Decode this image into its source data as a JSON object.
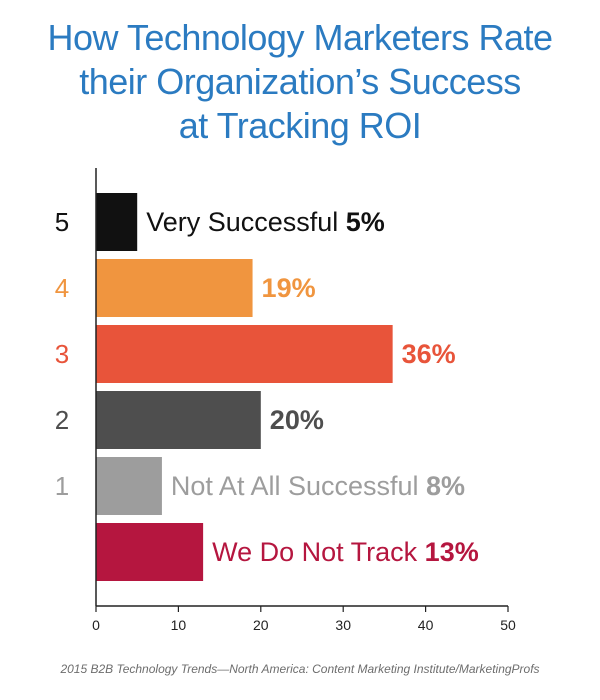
{
  "title": {
    "lines": [
      "How Technology Marketers Rate",
      "their Organization’s Success",
      "at Tracking ROI"
    ],
    "color": "#2b7bc1"
  },
  "chart_data": {
    "type": "bar",
    "orientation": "horizontal",
    "title": "How Technology Marketers Rate their Organization’s Success at Tracking ROI",
    "xlim": [
      0,
      50
    ],
    "xticks": [
      0,
      10,
      20,
      30,
      40,
      50
    ],
    "grid": false,
    "bars": [
      {
        "rating": "5",
        "label": "Very Successful",
        "value": 5,
        "value_label": "5%",
        "color": "#111111",
        "label_color": "#111111"
      },
      {
        "rating": "4",
        "label": "",
        "value": 19,
        "value_label": "19%",
        "color": "#f0953f",
        "label_color": "#f0953f"
      },
      {
        "rating": "3",
        "label": "",
        "value": 36,
        "value_label": "36%",
        "color": "#e8543a",
        "label_color": "#e8543a"
      },
      {
        "rating": "2",
        "label": "",
        "value": 20,
        "value_label": "20%",
        "color": "#4e4e4e",
        "label_color": "#4e4e4e"
      },
      {
        "rating": "1",
        "label": "Not At All Successful",
        "value": 8,
        "value_label": "8%",
        "color": "#9d9d9d",
        "label_color": "#9d9d9d"
      },
      {
        "rating": "",
        "label": "We Do Not Track",
        "value": 13,
        "value_label": "13%",
        "color": "#b5163f",
        "label_color": "#b5163f"
      }
    ]
  },
  "source": "2015 B2B Technology Trends—North America: Content Marketing Institute/MarketingProfs"
}
